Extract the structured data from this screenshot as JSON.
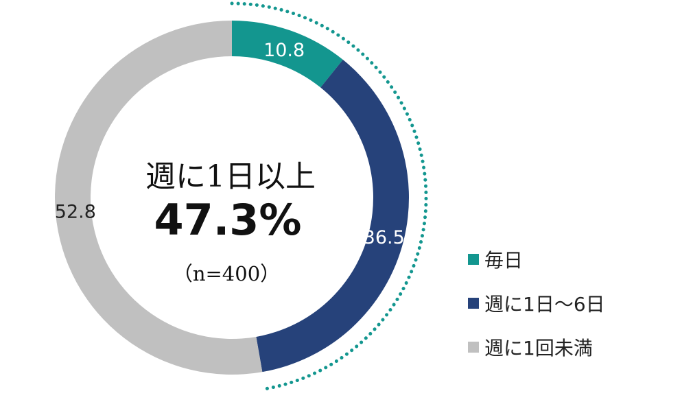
{
  "chart_data": {
    "type": "pie",
    "categories": [
      "毎日",
      "週に1日～6日",
      "週に1回未満"
    ],
    "values": [
      10.8,
      36.5,
      52.8
    ],
    "colors": [
      "#13968f",
      "#26427a",
      "#c0c0c0"
    ],
    "label_colors": [
      "#ffffff",
      "#ffffff",
      "#222222"
    ],
    "value_labels": [
      "10.8",
      "36.5",
      "52.8"
    ],
    "legend": [
      "毎日",
      "週に1日～6日",
      "週に1回未満"
    ],
    "legend_position": "right",
    "highlight_color": "#13968f",
    "center": {
      "title": "週に1日以上",
      "value": "47.3%",
      "n": "（n=400）"
    }
  }
}
